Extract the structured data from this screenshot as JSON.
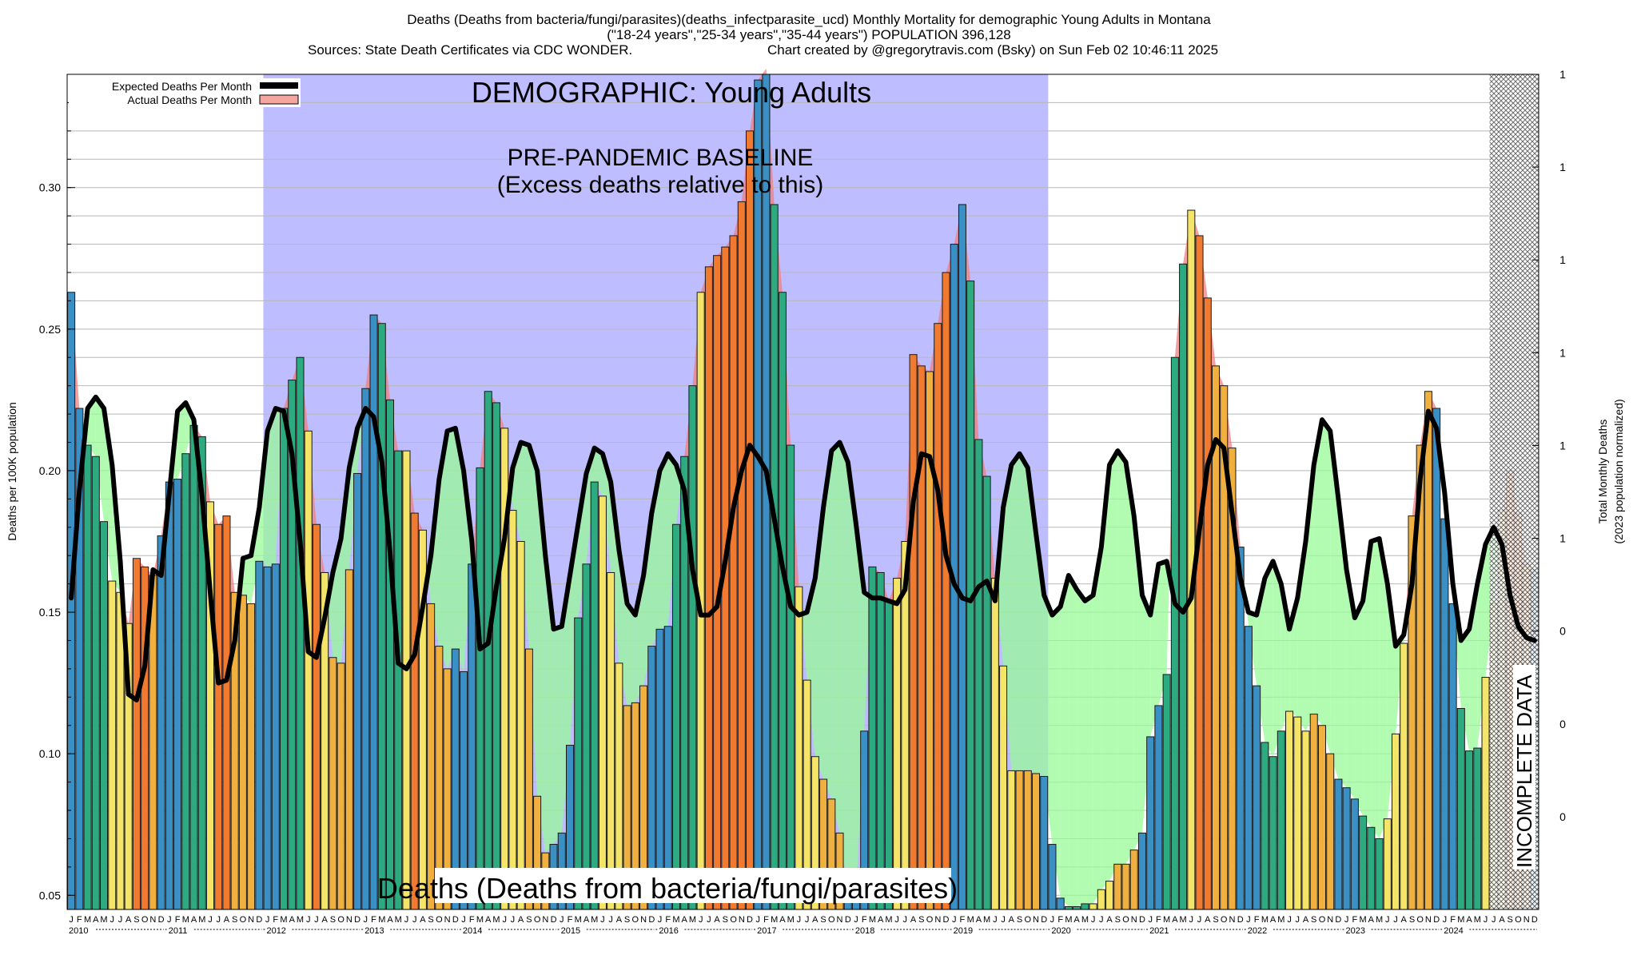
{
  "header": {
    "line1": "Deaths (Deaths from bacteria/fungi/parasites)(deaths_infectparasite_ucd) Monthly Mortality for demographic Young Adults in Montana",
    "line2": "(\"18-24 years\",\"25-34 years\",\"35-44 years\") POPULATION 396,128",
    "line3a": "Sources: State Death Certificates via CDC WONDER.",
    "line3b": "Chart created by  @gregorytravis.com (Bsky) on Sun Feb 02 10:46:11 2025"
  },
  "legend": {
    "expected": "Expected Deaths Per Month",
    "actual": "Actual Deaths Per Month"
  },
  "annotations": {
    "demographic": "DEMOGRAPHIC: Young Adults",
    "baseline_1": "PRE-PANDEMIC BASELINE",
    "baseline_2": "(Excess deaths relative to this)",
    "cause": "Deaths (Deaths from bacteria/fungi/parasites)",
    "incomplete": "INCOMPLETE DATA"
  },
  "colors": {
    "baseline_region": "#bdbdff",
    "excess_fill": "#f08080",
    "deficit_fill": "#98fb98",
    "expected_line": "#000000",
    "winter_bar": "#3a8fc4",
    "spring_bar": "#2eaa80",
    "summer_bar": "#f4e468",
    "fall_bar": "#f0b040",
    "peak_bar": "#f07a30"
  },
  "chart_data": {
    "type": "bar",
    "title": "Deaths (Deaths from bacteria/fungi/parasites)(deaths_infectparasite_ucd) Monthly Mortality for demographic Young Adults in Montana",
    "ylabel": "Deaths per 100K population",
    "y2label_1": "Total Monthly Deaths",
    "y2label_2": "(2023 population normalized)",
    "ylim": [
      0.045,
      0.34
    ],
    "yticks": [
      "0.05",
      "0.10",
      "0.15",
      "0.20",
      "0.25",
      "0.30"
    ],
    "y2ticks": [
      "1",
      "1",
      "1",
      "1",
      "1",
      "1",
      "0",
      "0",
      "0"
    ],
    "grid": "horizontal",
    "legend_position": "top-left",
    "month_letters": [
      "J",
      "F",
      "M",
      "A",
      "M",
      "J",
      "J",
      "A",
      "S",
      "O",
      "N",
      "D"
    ],
    "years": [
      "2010",
      "2011",
      "2012",
      "2013",
      "2014",
      "2015",
      "2016",
      "2017",
      "2018",
      "2019",
      "2020",
      "2021",
      "2022",
      "2023",
      "2024"
    ],
    "baseline_period": [
      "2012-01",
      "2019-12"
    ],
    "incomplete_from": "2024-07",
    "series": [
      {
        "name": "Actual Deaths Per Month",
        "values": [
          0.263,
          0.222,
          0.209,
          0.205,
          0.182,
          0.161,
          0.157,
          0.146,
          0.169,
          0.166,
          0.163,
          0.177,
          0.196,
          0.197,
          0.206,
          0.216,
          0.212,
          0.189,
          0.181,
          0.184,
          0.157,
          0.156,
          0.153,
          0.168,
          0.166,
          0.167,
          0.222,
          0.232,
          0.24,
          0.214,
          0.181,
          0.164,
          0.134,
          0.132,
          0.165,
          0.199,
          0.229,
          0.255,
          0.252,
          0.225,
          0.207,
          0.207,
          0.185,
          0.179,
          0.153,
          0.138,
          0.13,
          0.137,
          0.129,
          0.167,
          0.201,
          0.228,
          0.224,
          0.215,
          0.186,
          0.175,
          0.137,
          0.085,
          0.065,
          0.068,
          0.072,
          0.103,
          0.148,
          0.167,
          0.196,
          0.191,
          0.164,
          0.132,
          0.117,
          0.118,
          0.124,
          0.138,
          0.144,
          0.145,
          0.181,
          0.205,
          0.23,
          0.263,
          0.272,
          0.276,
          0.279,
          0.283,
          0.295,
          0.32,
          0.338,
          0.342,
          0.294,
          0.263,
          0.209,
          0.159,
          0.126,
          0.099,
          0.091,
          0.084,
          0.072,
          0.052,
          0.05,
          0.108,
          0.166,
          0.164,
          0.154,
          0.162,
          0.175,
          0.241,
          0.237,
          0.235,
          0.252,
          0.27,
          0.28,
          0.294,
          0.267,
          0.211,
          0.198,
          0.162,
          0.131,
          0.094,
          0.094,
          0.094,
          0.093,
          0.092,
          0.068,
          0.049,
          0.046,
          0.046,
          0.047,
          0.047,
          0.052,
          0.055,
          0.061,
          0.061,
          0.066,
          0.072,
          0.106,
          0.117,
          0.128,
          0.24,
          0.273,
          0.292,
          0.283,
          0.261,
          0.237,
          0.23,
          0.208,
          0.173,
          0.145,
          0.124,
          0.104,
          0.099,
          0.108,
          0.115,
          0.113,
          0.108,
          0.114,
          0.11,
          0.1,
          0.091,
          0.088,
          0.084,
          0.078,
          0.074,
          0.07,
          0.077,
          0.107,
          0.139,
          0.184,
          0.209,
          0.228,
          0.222,
          0.183,
          0.153,
          0.116,
          0.101,
          0.102,
          0.127,
          0.153,
          0.186,
          0.2,
          0.185,
          0.167,
          0.165
        ]
      },
      {
        "name": "Expected Deaths Per Month",
        "values": [
          0.155,
          0.193,
          0.222,
          0.226,
          0.222,
          0.202,
          0.168,
          0.121,
          0.119,
          0.131,
          0.165,
          0.163,
          0.192,
          0.221,
          0.224,
          0.218,
          0.191,
          0.157,
          0.125,
          0.126,
          0.14,
          0.169,
          0.17,
          0.187,
          0.214,
          0.222,
          0.221,
          0.206,
          0.175,
          0.136,
          0.134,
          0.148,
          0.164,
          0.176,
          0.201,
          0.215,
          0.222,
          0.219,
          0.203,
          0.171,
          0.132,
          0.13,
          0.135,
          0.152,
          0.17,
          0.197,
          0.214,
          0.215,
          0.2,
          0.175,
          0.137,
          0.139,
          0.159,
          0.176,
          0.201,
          0.21,
          0.209,
          0.2,
          0.17,
          0.144,
          0.145,
          0.163,
          0.181,
          0.199,
          0.208,
          0.206,
          0.196,
          0.172,
          0.153,
          0.149,
          0.163,
          0.185,
          0.2,
          0.206,
          0.202,
          0.193,
          0.165,
          0.149,
          0.149,
          0.152,
          0.168,
          0.187,
          0.2,
          0.209,
          0.205,
          0.2,
          0.183,
          0.166,
          0.152,
          0.149,
          0.15,
          0.162,
          0.187,
          0.207,
          0.21,
          0.203,
          0.181,
          0.157,
          0.155,
          0.155,
          0.154,
          0.153,
          0.158,
          0.189,
          0.206,
          0.205,
          0.193,
          0.17,
          0.16,
          0.155,
          0.154,
          0.159,
          0.161,
          0.154,
          0.187,
          0.202,
          0.206,
          0.201,
          0.178,
          0.156,
          0.149,
          0.152,
          0.163,
          0.158,
          0.154,
          0.156,
          0.173,
          0.202,
          0.207,
          0.203,
          0.184,
          0.156,
          0.149,
          0.167,
          0.168,
          0.153,
          0.15,
          0.155,
          0.179,
          0.202,
          0.211,
          0.208,
          0.185,
          0.162,
          0.15,
          0.149,
          0.162,
          0.168,
          0.16,
          0.144,
          0.155,
          0.175,
          0.202,
          0.218,
          0.214,
          0.19,
          0.165,
          0.148,
          0.154,
          0.175,
          0.176,
          0.16,
          0.138,
          0.142,
          0.16,
          0.197,
          0.221,
          0.215,
          0.192,
          0.16,
          0.14,
          0.144,
          0.16,
          0.174,
          0.18,
          0.174,
          0.156,
          0.145,
          0.141,
          0.14
        ]
      }
    ]
  }
}
